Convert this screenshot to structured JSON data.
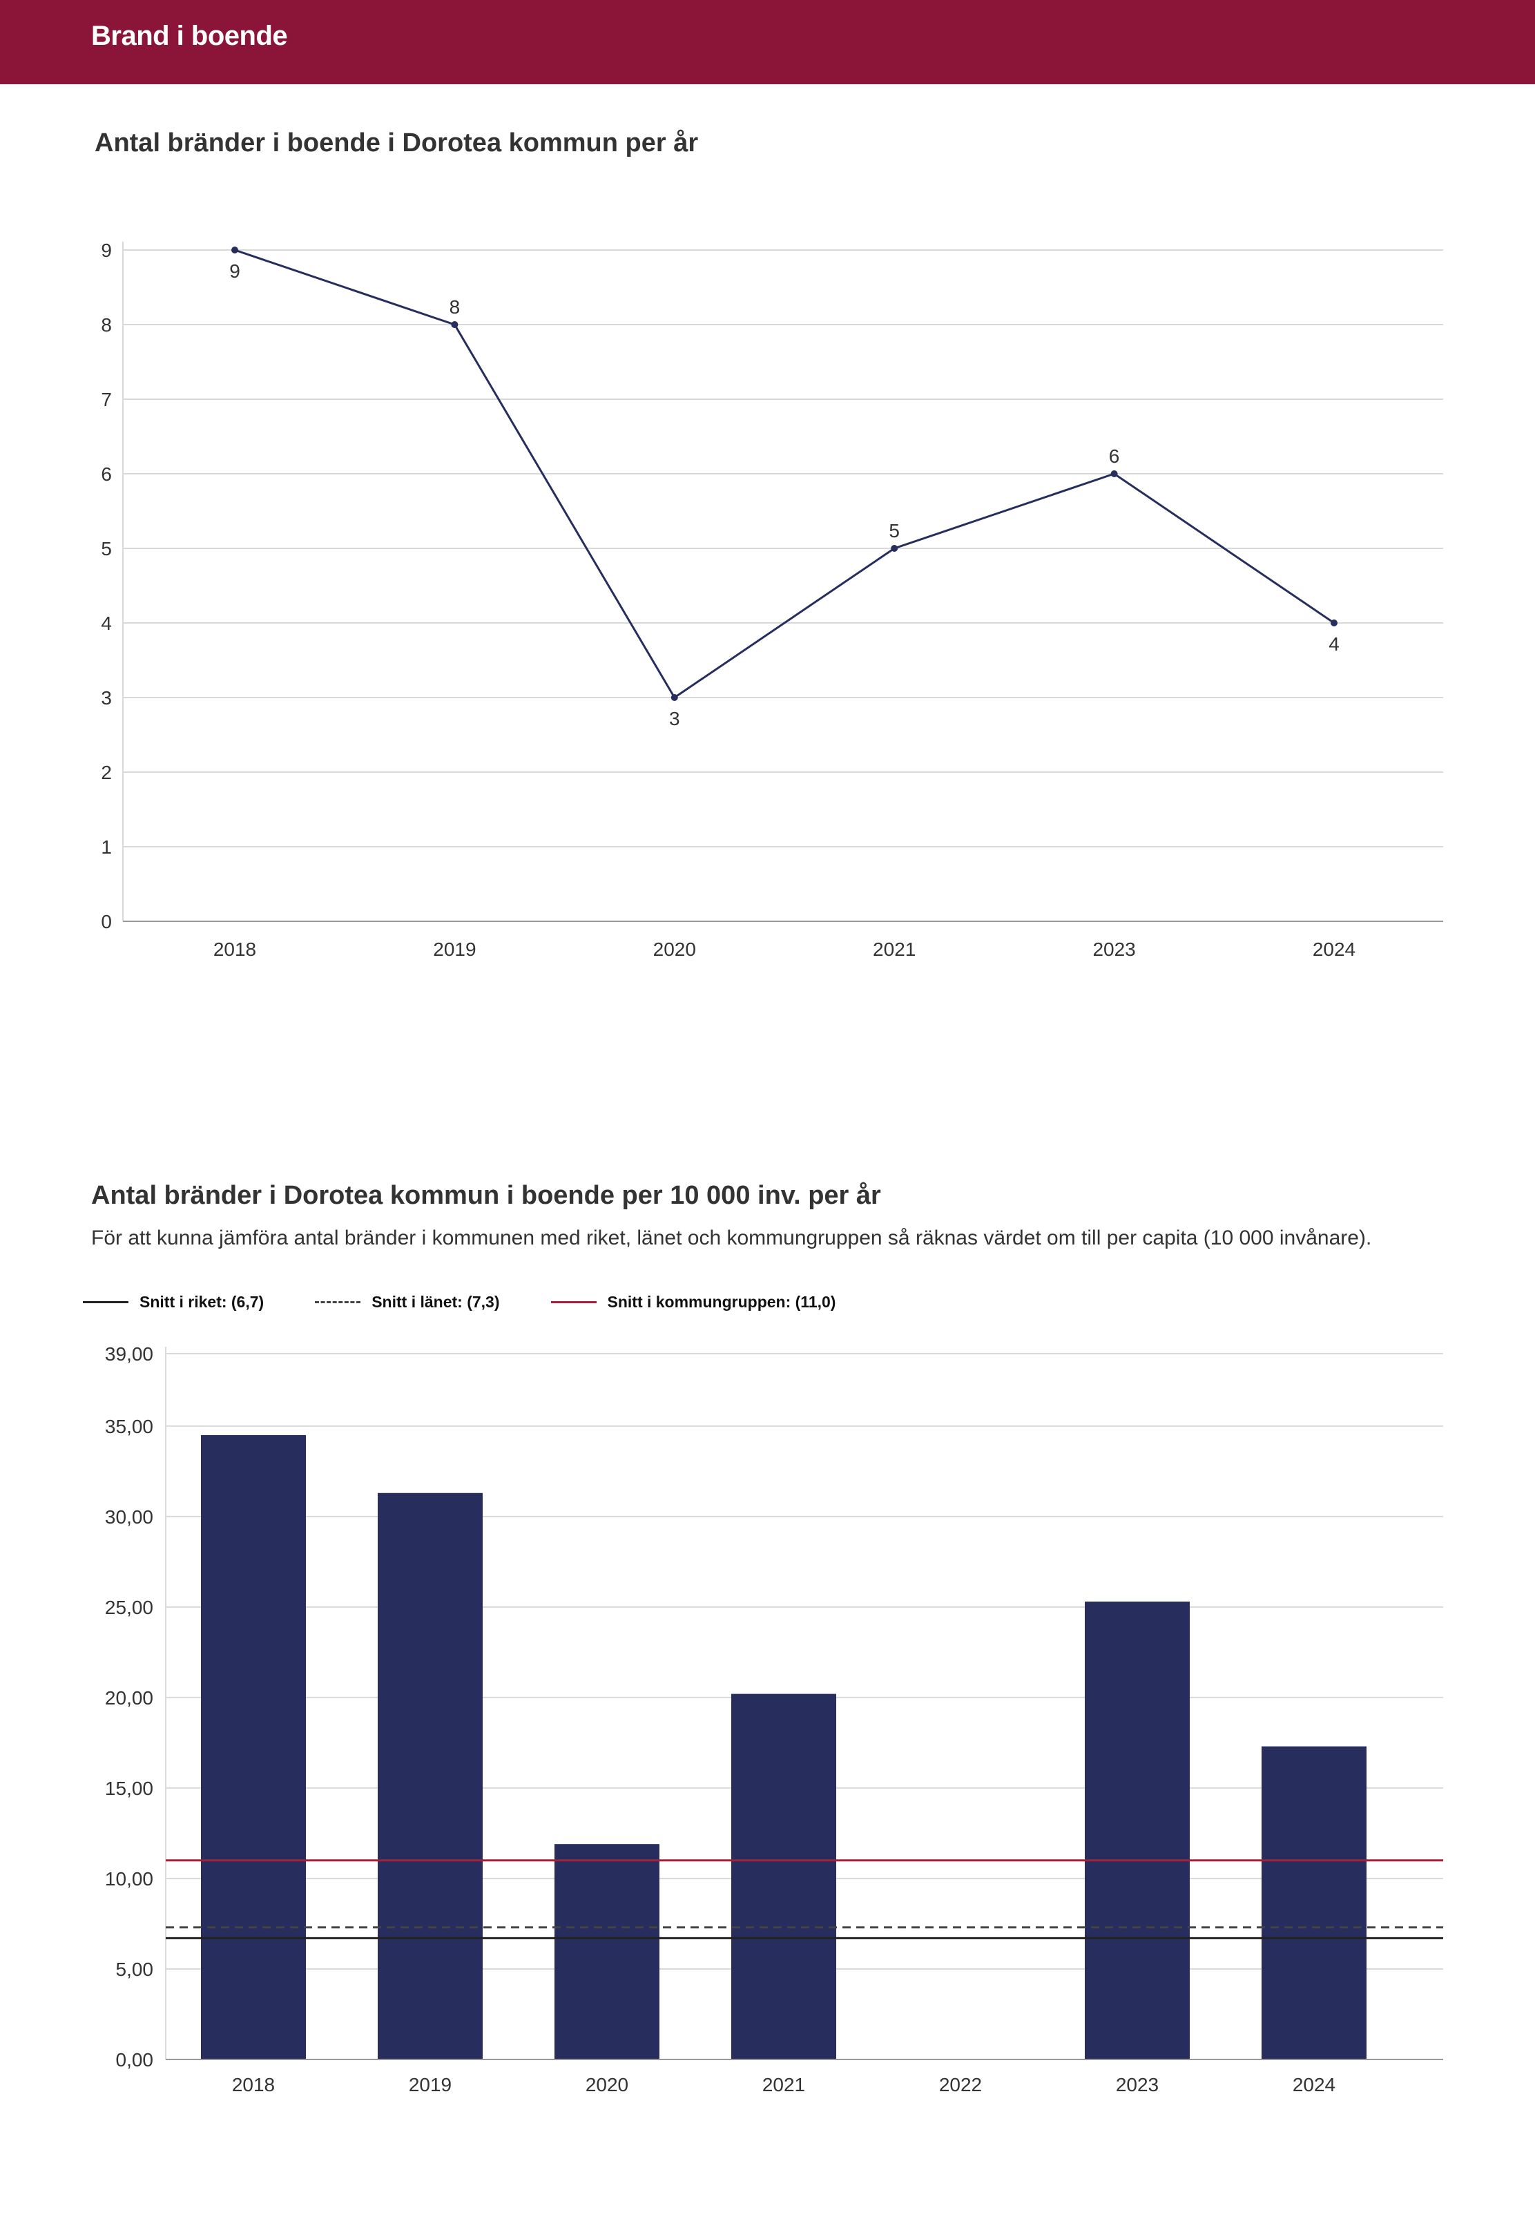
{
  "header": {
    "title": "Brand i boende"
  },
  "colors": {
    "header_bg": "#8b1538",
    "series": "#272d5c",
    "kommungrupp": "#a4213b",
    "riket": "#222222",
    "lanet": "#444444",
    "grid": "#d9d9d9"
  },
  "chart_data": [
    {
      "type": "line",
      "title": "Antal bränder i boende i Dorotea kommun per år",
      "categories": [
        "2018",
        "2019",
        "2020",
        "2021",
        "2023",
        "2024"
      ],
      "values": [
        9,
        8,
        3,
        5,
        6,
        4
      ],
      "data_labels": [
        "9",
        "8",
        "3",
        "5",
        "6",
        "4"
      ],
      "y_ticks": [
        "0",
        "1",
        "2",
        "3",
        "4",
        "5",
        "6",
        "7",
        "8",
        "9"
      ],
      "ylim": [
        0,
        9
      ],
      "grid": true
    },
    {
      "type": "bar",
      "title": "Antal bränder i Dorotea kommun i boende per 10 000 inv. per år",
      "subtitle": "För att kunna jämföra antal bränder i kommunen med riket, länet och kommungruppen så räknas värdet om till per capita (10 000 invånare).",
      "categories": [
        "2018",
        "2019",
        "2020",
        "2021",
        "2022",
        "2023",
        "2024"
      ],
      "values": [
        34.5,
        31.3,
        11.9,
        20.2,
        0,
        25.3,
        17.3
      ],
      "y_ticks": [
        "0,00",
        "5,00",
        "10,00",
        "15,00",
        "20,00",
        "25,00",
        "30,00",
        "35,00",
        "39,00"
      ],
      "ylim": [
        0,
        39
      ],
      "grid": true,
      "reference_lines": [
        {
          "name": "Snitt i riket: (6,7)",
          "value": 6.7,
          "style": "solid",
          "color": "#222222"
        },
        {
          "name": "Snitt i länet: (7,3)",
          "value": 7.3,
          "style": "dashed",
          "color": "#444444"
        },
        {
          "name": "Snitt i kommungruppen: (11,0)",
          "value": 11.0,
          "style": "solid",
          "color": "#a4213b"
        }
      ]
    }
  ]
}
